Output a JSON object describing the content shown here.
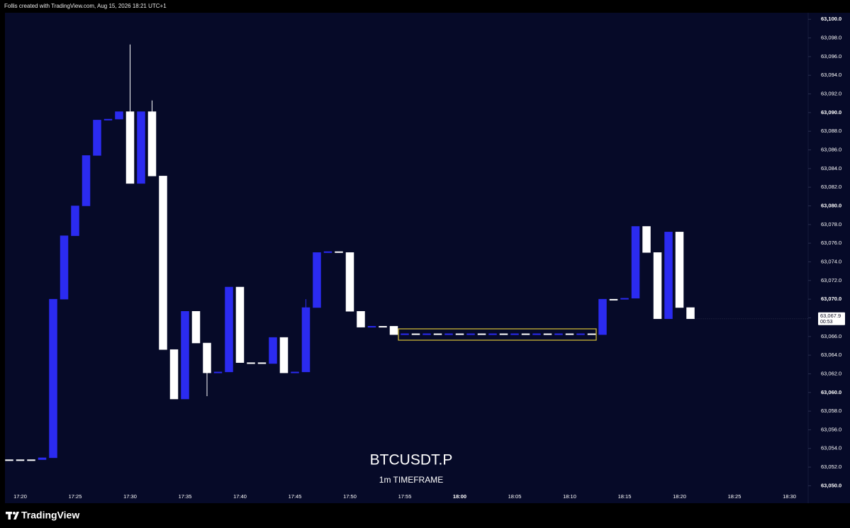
{
  "header": "Follis created with TradingView.com, Aug 15, 2026 18:21 UTC+1",
  "footer_brand": "TradingView",
  "chart_data": {
    "type": "candlestick",
    "title": "BTCUSDT.P",
    "subtitle": "1m TIMEFRAME",
    "up_color": "#2b2bf0",
    "down_color": "#ffffff",
    "last_price_label": "63,067.9",
    "countdown": "00:53",
    "categories": [
      null,
      "17:20",
      null,
      null,
      null,
      null,
      "17:25",
      null,
      null,
      null,
      null,
      "17:30",
      null,
      null,
      null,
      null,
      "17:35",
      null,
      null,
      null,
      null,
      "17:40",
      null,
      null,
      null,
      null,
      "17:45",
      null,
      null,
      null,
      null,
      "17:50",
      null,
      null,
      null,
      null,
      "17:55",
      null,
      null,
      null,
      null,
      "18:00",
      null,
      null,
      null,
      null,
      "18:05",
      null,
      null,
      null,
      null,
      "18:10",
      null,
      null,
      null,
      null,
      "18:15",
      null,
      null,
      null,
      null,
      "18:20",
      null,
      null,
      null,
      null,
      "18:25",
      null,
      null,
      null,
      null,
      "18:30",
      null
    ],
    "open": [
      63052.8,
      63052.8,
      63052.8,
      63052.8,
      63053.0,
      63070.0,
      63076.8,
      63080.0,
      63085.4,
      63089.2,
      63089.3,
      63090.1,
      63082.4,
      63090.1,
      63083.2,
      63064.6,
      63059.3,
      63068.7,
      63065.3,
      63062.1,
      63062.2,
      63071.3,
      63063.2,
      63063.2,
      63063.1,
      63065.9,
      63062.1,
      63062.2,
      63069.1,
      63075.0,
      63075.1,
      63075.0,
      63068.7,
      63067.0,
      63067.1,
      63067.1,
      63066.2,
      63066.3,
      63066.2,
      63066.3,
      63066.2,
      63066.3,
      63066.2,
      63066.3,
      63066.2,
      63066.3,
      63066.2,
      63066.3,
      63066.2,
      63066.3,
      63066.2,
      63066.3,
      63066.2,
      63066.3,
      63066.2,
      63070.0,
      63070.0,
      63070.1,
      63077.8,
      63075.0,
      63067.9,
      63077.2,
      63069.1,
      null,
      null,
      null,
      null,
      null,
      null,
      null,
      null,
      null,
      null
    ],
    "high": [
      63052.8,
      63052.8,
      63052.8,
      63053.0,
      63070.0,
      63076.8,
      63080.0,
      63085.4,
      63089.2,
      63089.3,
      63090.1,
      63097.3,
      63090.1,
      63091.3,
      63083.2,
      63064.6,
      63068.7,
      63068.7,
      63065.3,
      63062.2,
      63071.3,
      63071.3,
      63063.2,
      63063.2,
      63065.9,
      63065.9,
      63062.2,
      63070.0,
      63075.0,
      63075.1,
      63075.1,
      63075.0,
      63068.7,
      63067.1,
      63067.1,
      63067.1,
      63066.3,
      63066.3,
      63066.3,
      63066.3,
      63066.3,
      63066.3,
      63066.3,
      63066.3,
      63066.3,
      63066.3,
      63066.3,
      63066.3,
      63066.3,
      63066.3,
      63066.3,
      63066.3,
      63066.3,
      63066.3,
      63070.0,
      63070.0,
      63070.1,
      63077.8,
      63077.8,
      63075.0,
      63077.2,
      63077.2,
      63069.1,
      null,
      null,
      null,
      null,
      null,
      null,
      null,
      null,
      null,
      null
    ],
    "low": [
      63052.8,
      63052.8,
      63052.8,
      63052.8,
      63053.0,
      63070.0,
      63076.8,
      63080.0,
      63085.4,
      63089.2,
      63089.3,
      63082.4,
      63082.4,
      63083.2,
      63064.6,
      63059.3,
      63059.3,
      63065.3,
      63059.6,
      63062.1,
      63062.2,
      63063.2,
      63063.2,
      63063.1,
      63063.1,
      63062.1,
      63062.1,
      63062.2,
      63069.1,
      63075.0,
      63075.0,
      63068.7,
      63067.0,
      63067.0,
      63067.1,
      63066.2,
      63066.2,
      63066.2,
      63066.2,
      63066.2,
      63066.2,
      63066.2,
      63066.2,
      63066.2,
      63066.2,
      63066.2,
      63066.2,
      63066.2,
      63066.2,
      63066.2,
      63066.2,
      63066.2,
      63066.2,
      63066.2,
      63066.2,
      63070.0,
      63070.0,
      63070.1,
      63075.0,
      63067.9,
      63067.9,
      63069.1,
      63067.9,
      null,
      null,
      null,
      null,
      null,
      null,
      null,
      null,
      null,
      null
    ],
    "close": [
      63052.8,
      63052.8,
      63052.8,
      63053.0,
      63070.0,
      63076.8,
      63080.0,
      63085.4,
      63089.2,
      63089.3,
      63090.1,
      63082.4,
      63090.1,
      63083.2,
      63064.6,
      63059.3,
      63068.7,
      63065.3,
      63062.1,
      63062.2,
      63071.3,
      63063.2,
      63063.2,
      63063.1,
      63065.9,
      63062.1,
      63062.2,
      63069.1,
      63075.0,
      63075.1,
      63075.0,
      63068.7,
      63067.0,
      63067.1,
      63067.1,
      63066.2,
      63066.3,
      63066.2,
      63066.3,
      63066.2,
      63066.3,
      63066.2,
      63066.3,
      63066.2,
      63066.3,
      63066.2,
      63066.3,
      63066.2,
      63066.3,
      63066.2,
      63066.3,
      63066.2,
      63066.3,
      63066.2,
      63070.0,
      63070.0,
      63070.1,
      63077.8,
      63075.0,
      63067.9,
      63077.2,
      63069.1,
      63067.9,
      null,
      null,
      null,
      null,
      null,
      null,
      null,
      null,
      null,
      null
    ],
    "ylim": [
      63049.5,
      63100.7
    ],
    "yticks": [
      {
        "value": 63050,
        "label": "63,050.0"
      },
      {
        "value": 63052,
        "label": "63,052.0"
      },
      {
        "value": 63054,
        "label": "63,054.0"
      },
      {
        "value": 63056,
        "label": "63,056.0"
      },
      {
        "value": 63058,
        "label": "63,058.0"
      },
      {
        "value": 63060,
        "label": "63,060.0"
      },
      {
        "value": 63062,
        "label": "63,062.0"
      },
      {
        "value": 63064,
        "label": "63,064.0"
      },
      {
        "value": 63066,
        "label": "63,066.0"
      },
      {
        "value": 63068,
        "label": "63,068.0"
      },
      {
        "value": 63070,
        "label": "63,070.0"
      },
      {
        "value": 63072,
        "label": "63,072.0"
      },
      {
        "value": 63074,
        "label": "63,074.0"
      },
      {
        "value": 63076,
        "label": "63,076.0"
      },
      {
        "value": 63078,
        "label": "63,078.0"
      },
      {
        "value": 63080,
        "label": "63,080.0"
      },
      {
        "value": 63082,
        "label": "63,082.0"
      },
      {
        "value": 63084,
        "label": "63,084.0"
      },
      {
        "value": 63086,
        "label": "63,086.0"
      },
      {
        "value": 63088,
        "label": "63,088.0"
      },
      {
        "value": 63090,
        "label": "63,090.0"
      },
      {
        "value": 63092,
        "label": "63,092.0"
      },
      {
        "value": 63094,
        "label": "63,094.0"
      },
      {
        "value": 63096,
        "label": "63,096.0"
      },
      {
        "value": 63098,
        "label": "63,098.0"
      },
      {
        "value": 63100,
        "label": "63,100.0"
      }
    ]
  }
}
